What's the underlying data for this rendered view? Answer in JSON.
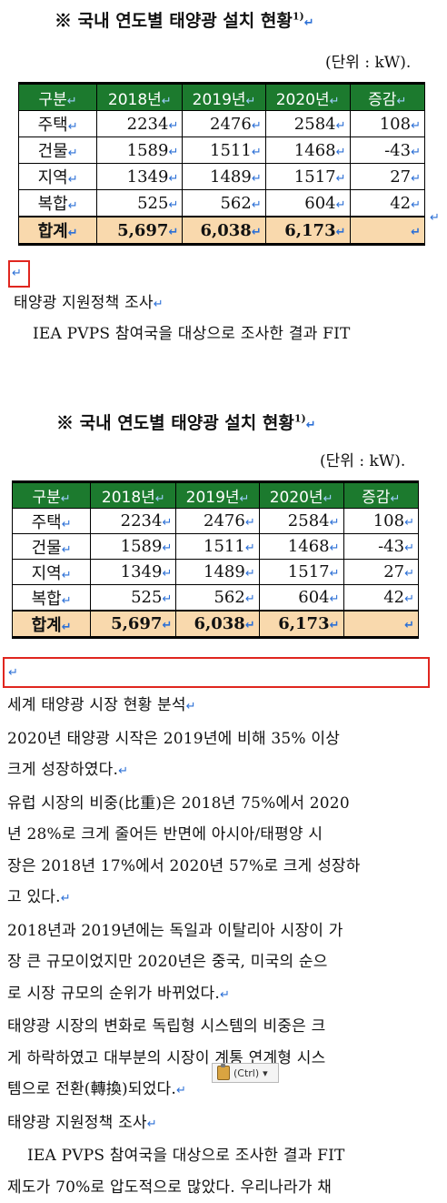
{
  "table_title": "※ 국내 연도별 태양광 설치 현황",
  "table_title_sup": "1)",
  "unit_label": "(단위 : kW).",
  "unit_label_2": "(단위 : kW).",
  "return_mark": "↵",
  "table": {
    "headers": [
      "구분",
      "2018년",
      "2019년",
      "2020년",
      "증감"
    ],
    "rows": [
      [
        "주택",
        "2234",
        "2476",
        "2584",
        "108"
      ],
      [
        "건물",
        "1589",
        "1511",
        "1468",
        "-43"
      ],
      [
        "지역",
        "1349",
        "1489",
        "1517",
        "27"
      ],
      [
        "복합",
        "525",
        "562",
        "604",
        "42"
      ]
    ],
    "total": [
      "합계",
      "5,697",
      "6,038",
      "6,173",
      ""
    ]
  },
  "top_section": {
    "heading": "태양광 지원정책 조사",
    "line": "IEA PVPS 참여국을 대상으로 조사한 결과 FIT"
  },
  "body_lines": [
    "세계 태양광 시장 현황 분석",
    "2020년 태양광 시작은 2019년에 비해 35% 이상",
    "크게 성장하였다.",
    "유럽 시장의 비중(比重)은 2018년 75%에서 2020",
    "년 28%로 크게 줄어든 반면에 아시아/태평양 시",
    "장은 2018년 17%에서 2020년 57%로 크게 성장하",
    "고 있다.",
    "2018년과 2019년에는 독일과 이탈리아 시장이 가",
    "장 큰 규모이었지만 2020년은 중국, 미국의 순으",
    "로 시장 규모의 순위가 바뀌었다.",
    "태양광 시장의 변화로 독립형 시스템의 비중은 크",
    "게 하락하였고 대부분의 시장이 계통 연계형 시스",
    "템으로 전환(轉換)되었다.",
    "태양광 지원정책 조사",
    "IEA PVPS 참여국을 대상으로 조사한 결과 FIT",
    "제도가 70%로 압도적으로 많았다. 우리나라가 채"
  ],
  "paste_options": {
    "label": "(Ctrl)",
    "arrow": "▾"
  }
}
